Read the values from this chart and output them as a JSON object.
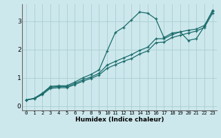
{
  "xlabel": "Humidex (Indice chaleur)",
  "background_color": "#cde8ec",
  "grid_color": "#aacdd2",
  "line_color": "#1a6b6b",
  "xlim": [
    -0.5,
    23.5
  ],
  "ylim": [
    -0.15,
    3.6
  ],
  "xticks": [
    0,
    1,
    2,
    3,
    4,
    5,
    6,
    7,
    8,
    9,
    10,
    11,
    12,
    13,
    14,
    15,
    16,
    17,
    18,
    19,
    20,
    21,
    22,
    23
  ],
  "yticks": [
    0,
    1,
    2,
    3
  ],
  "line1_x": [
    0,
    1,
    2,
    3,
    4,
    5,
    6,
    7,
    8,
    9,
    10,
    11,
    12,
    13,
    14,
    15,
    16,
    17,
    18,
    19,
    20,
    21,
    22,
    23
  ],
  "line1_y": [
    0.22,
    0.28,
    0.46,
    0.7,
    0.72,
    0.72,
    0.85,
    1.0,
    1.12,
    1.28,
    1.95,
    2.6,
    2.78,
    3.05,
    3.32,
    3.28,
    3.08,
    2.42,
    2.58,
    2.62,
    2.32,
    2.38,
    2.82,
    3.38
  ],
  "line2_x": [
    0,
    1,
    2,
    3,
    4,
    5,
    6,
    7,
    8,
    9,
    10,
    11,
    12,
    13,
    14,
    15,
    16,
    17,
    18,
    19,
    20,
    21,
    22,
    23
  ],
  "line2_y": [
    0.22,
    0.27,
    0.44,
    0.67,
    0.69,
    0.69,
    0.8,
    0.93,
    1.03,
    1.16,
    1.45,
    1.58,
    1.7,
    1.82,
    1.97,
    2.08,
    2.38,
    2.38,
    2.52,
    2.62,
    2.68,
    2.72,
    2.85,
    3.35
  ],
  "line3_x": [
    0,
    1,
    2,
    3,
    4,
    5,
    6,
    7,
    8,
    9,
    10,
    11,
    12,
    13,
    14,
    15,
    16,
    17,
    18,
    19,
    20,
    21,
    22,
    23
  ],
  "line3_y": [
    0.22,
    0.26,
    0.41,
    0.63,
    0.65,
    0.65,
    0.76,
    0.88,
    0.98,
    1.1,
    1.34,
    1.46,
    1.58,
    1.68,
    1.84,
    1.95,
    2.24,
    2.26,
    2.42,
    2.5,
    2.58,
    2.65,
    2.78,
    3.28
  ]
}
